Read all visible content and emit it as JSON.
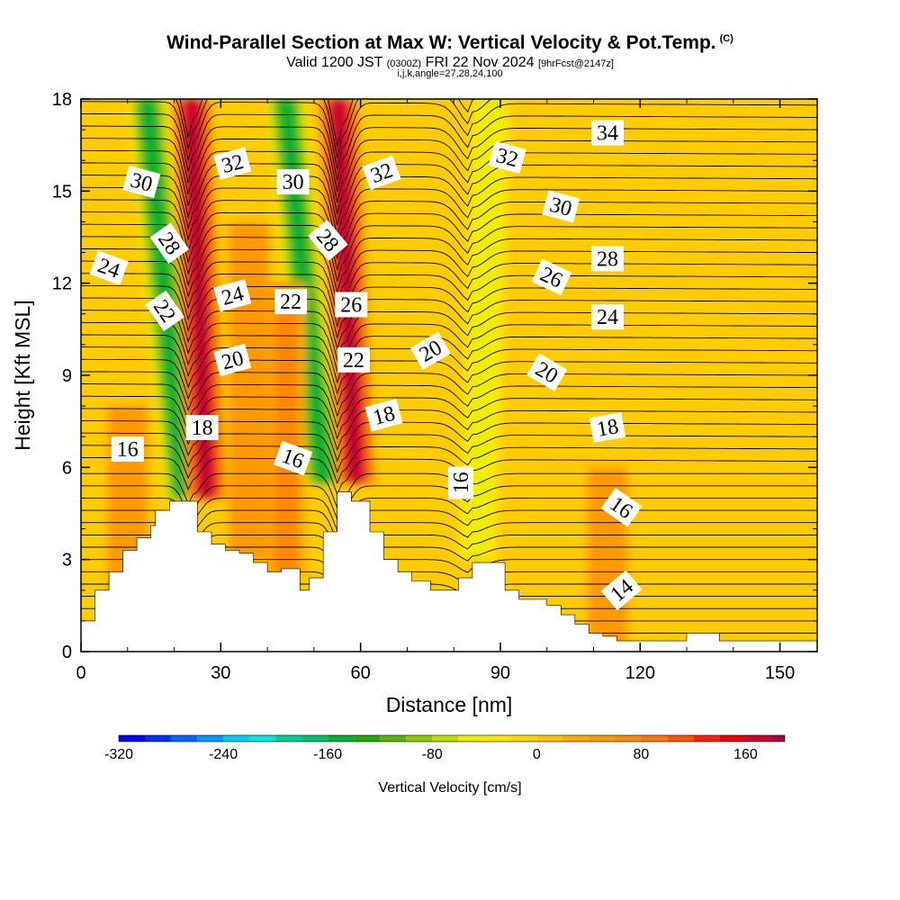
{
  "header": {
    "title": "Wind-Parallel Section at Max W: Vertical Velocity & Pot.Temp.",
    "copyright": "(C)",
    "valid_prefix": "Valid 1200 JST",
    "valid_utc": "(0300Z)",
    "valid_date": "FRI 22 Nov 2024",
    "forecast_info": "[9hrFcst@2147z]",
    "indices": "i,j,k,angle=27,28,24,100"
  },
  "colors": {
    "background": "#ffffff",
    "terrain": "#ffffff",
    "contour": "#000000",
    "plot_base": "#ffcc00"
  },
  "chart_data": {
    "type": "heatmap",
    "xlabel": "Distance [nm]",
    "ylabel": "Height [Kft MSL]",
    "xlim": [
      0,
      158
    ],
    "ylim": [
      0,
      18
    ],
    "x_ticks": [
      "0",
      "30",
      "60",
      "90",
      "120",
      "150"
    ],
    "y_ticks": [
      "0",
      "3",
      "6",
      "9",
      "12",
      "15",
      "18"
    ],
    "colorbar": {
      "label": "Vertical Velocity [cm/s]",
      "tick_labels": [
        "-320",
        "-240",
        "-160",
        "-80",
        "0",
        "80",
        "160"
      ],
      "tick_values": [
        -320,
        -240,
        -160,
        -80,
        0,
        80,
        160
      ],
      "min": -320,
      "max": 190,
      "step": 20,
      "colors": [
        "#0000ff",
        "#0033ff",
        "#0066ff",
        "#0099ff",
        "#00ccff",
        "#00e5e5",
        "#00cc99",
        "#00bf66",
        "#00b233",
        "#22aa00",
        "#55b500",
        "#88cc00",
        "#bbdd00",
        "#eeee00",
        "#ffe600",
        "#ffd700",
        "#ffc300",
        "#ffaa00",
        "#ff9900",
        "#ff8800",
        "#ff7700",
        "#ff5500",
        "#ff2200",
        "#ee0000",
        "#cc0033",
        "#aa0044",
        "#880055",
        "#660066"
      ]
    },
    "terrain_profile": {
      "x_nm": [
        0,
        3,
        3,
        6,
        6,
        9,
        9,
        12,
        12,
        15,
        15,
        16,
        16,
        19,
        19,
        22,
        22,
        25,
        25,
        28,
        28,
        31,
        31,
        34,
        34,
        37,
        37,
        40,
        40,
        43,
        43,
        47,
        47,
        49,
        49,
        52,
        52,
        55,
        55,
        58,
        58,
        62,
        62,
        65,
        65,
        68,
        68,
        71,
        71,
        75,
        75,
        78,
        78,
        81,
        81,
        84,
        84,
        86,
        86,
        89,
        89,
        91,
        91,
        94,
        94,
        97,
        97,
        100,
        100,
        103,
        103,
        106,
        106,
        109,
        109,
        112,
        112,
        115,
        115,
        118,
        118,
        121,
        121,
        124,
        124,
        127,
        127,
        130,
        130,
        133,
        133,
        137,
        137,
        140,
        140,
        143,
        143,
        147,
        147,
        152,
        152,
        158
      ],
      "z_kft": [
        1,
        1,
        2,
        2,
        2.6,
        2.6,
        3.3,
        3.3,
        3.7,
        3.7,
        4.1,
        4.1,
        4.6,
        4.6,
        4.9,
        4.9,
        4.9,
        4.9,
        3.9,
        3.9,
        3.5,
        3.5,
        3.3,
        3.3,
        3.2,
        3.2,
        2.9,
        2.9,
        2.6,
        2.6,
        2.7,
        2.7,
        2.0,
        2.0,
        2.4,
        2.4,
        3.9,
        3.9,
        5.2,
        5.2,
        4.9,
        4.9,
        3.9,
        3.9,
        3.0,
        3.0,
        2.6,
        2.6,
        2.3,
        2.3,
        2.0,
        2.0,
        2.0,
        2.0,
        2.4,
        2.4,
        2.9,
        2.9,
        2.9,
        2.9,
        2.9,
        2.9,
        2.0,
        2.0,
        1.7,
        1.7,
        1.7,
        1.7,
        1.5,
        1.5,
        1.2,
        1.2,
        0.9,
        0.9,
        0.6,
        0.6,
        0.5,
        0.5,
        0.35,
        0.35,
        0.35,
        0.35,
        0.35,
        0.35,
        0.35,
        0.35,
        0.35,
        0.35,
        0.6,
        0.6,
        0.6,
        0.6,
        0.35,
        0.35,
        0.35,
        0.35,
        0.35,
        0.35,
        0.35,
        0.35,
        0.35,
        0.35
      ]
    },
    "w_features": [
      {
        "x_nm": 22,
        "z_bottom_kft": 5,
        "z_top_kft": 18,
        "slope_nm_per_kft": -0.6,
        "w_cms": -150
      },
      {
        "x_nm": 27,
        "z_bottom_kft": 5,
        "z_top_kft": 18,
        "slope_nm_per_kft": -0.25,
        "w_cms": 160
      },
      {
        "x_nm": 52,
        "z_bottom_kft": 5.5,
        "z_top_kft": 18,
        "slope_nm_per_kft": -0.65,
        "w_cms": -150
      },
      {
        "x_nm": 59,
        "z_bottom_kft": 5.5,
        "z_top_kft": 18,
        "slope_nm_per_kft": -0.3,
        "w_cms": 160
      },
      {
        "x_nm": 85,
        "z_bottom_kft": 3,
        "z_top_kft": 18,
        "slope_nm_per_kft": 0.2,
        "w_cms": -60
      },
      {
        "x_nm": 44,
        "z_bottom_kft": 2.5,
        "z_top_kft": 12,
        "slope_nm_per_kft": 0,
        "w_cms": 60
      },
      {
        "x_nm": 36,
        "z_bottom_kft": 3,
        "z_top_kft": 14,
        "slope_nm_per_kft": 0,
        "w_cms": 40
      },
      {
        "x_nm": 113,
        "z_bottom_kft": 0,
        "z_top_kft": 6,
        "slope_nm_per_kft": 0,
        "w_cms": 40
      },
      {
        "x_nm": 10,
        "z_bottom_kft": 1,
        "z_top_kft": 8,
        "slope_nm_per_kft": 0,
        "w_cms": 40
      }
    ],
    "theta_contour_labels": [
      {
        "text": "30",
        "x_nm": 13,
        "z_kft": 15.3,
        "angle_deg": 15
      },
      {
        "text": "28",
        "x_nm": 19,
        "z_kft": 13.3,
        "angle_deg": 55
      },
      {
        "text": "24",
        "x_nm": 6,
        "z_kft": 12.5,
        "angle_deg": 20
      },
      {
        "text": "22",
        "x_nm": 18,
        "z_kft": 11.1,
        "angle_deg": 55
      },
      {
        "text": "16",
        "x_nm": 10,
        "z_kft": 6.6,
        "angle_deg": 0
      },
      {
        "text": "32",
        "x_nm": 32.5,
        "z_kft": 15.9,
        "angle_deg": -15
      },
      {
        "text": "30",
        "x_nm": 45.5,
        "z_kft": 15.3,
        "angle_deg": 0
      },
      {
        "text": "24",
        "x_nm": 32.5,
        "z_kft": 11.6,
        "angle_deg": -15
      },
      {
        "text": "22",
        "x_nm": 45,
        "z_kft": 11.4,
        "angle_deg": 0
      },
      {
        "text": "20",
        "x_nm": 32.5,
        "z_kft": 9.5,
        "angle_deg": -15
      },
      {
        "text": "18",
        "x_nm": 26,
        "z_kft": 7.3,
        "angle_deg": 0
      },
      {
        "text": "16",
        "x_nm": 45.5,
        "z_kft": 6.3,
        "angle_deg": 20
      },
      {
        "text": "28",
        "x_nm": 53,
        "z_kft": 13.4,
        "angle_deg": 50
      },
      {
        "text": "26",
        "x_nm": 58,
        "z_kft": 11.3,
        "angle_deg": 0
      },
      {
        "text": "22",
        "x_nm": 58.5,
        "z_kft": 9.5,
        "angle_deg": 0
      },
      {
        "text": "32",
        "x_nm": 64.5,
        "z_kft": 15.6,
        "angle_deg": -20
      },
      {
        "text": "18",
        "x_nm": 65,
        "z_kft": 7.7,
        "angle_deg": -15
      },
      {
        "text": "20",
        "x_nm": 75,
        "z_kft": 9.8,
        "angle_deg": -30
      },
      {
        "text": "16",
        "x_nm": 81.5,
        "z_kft": 5.5,
        "angle_deg": -90
      },
      {
        "text": "32",
        "x_nm": 91.5,
        "z_kft": 16.1,
        "angle_deg": 15
      },
      {
        "text": "30",
        "x_nm": 103,
        "z_kft": 14.5,
        "angle_deg": 15
      },
      {
        "text": "26",
        "x_nm": 101,
        "z_kft": 12.2,
        "angle_deg": 25
      },
      {
        "text": "20",
        "x_nm": 100,
        "z_kft": 9.1,
        "angle_deg": 30
      },
      {
        "text": "34",
        "x_nm": 113,
        "z_kft": 16.9,
        "angle_deg": 0
      },
      {
        "text": "28",
        "x_nm": 113,
        "z_kft": 12.8,
        "angle_deg": 0
      },
      {
        "text": "24",
        "x_nm": 113,
        "z_kft": 10.9,
        "angle_deg": 0
      },
      {
        "text": "18",
        "x_nm": 113,
        "z_kft": 7.3,
        "angle_deg": -10
      },
      {
        "text": "16",
        "x_nm": 116,
        "z_kft": 4.7,
        "angle_deg": 35
      },
      {
        "text": "14",
        "x_nm": 116,
        "z_kft": 2.0,
        "angle_deg": -40
      }
    ]
  }
}
